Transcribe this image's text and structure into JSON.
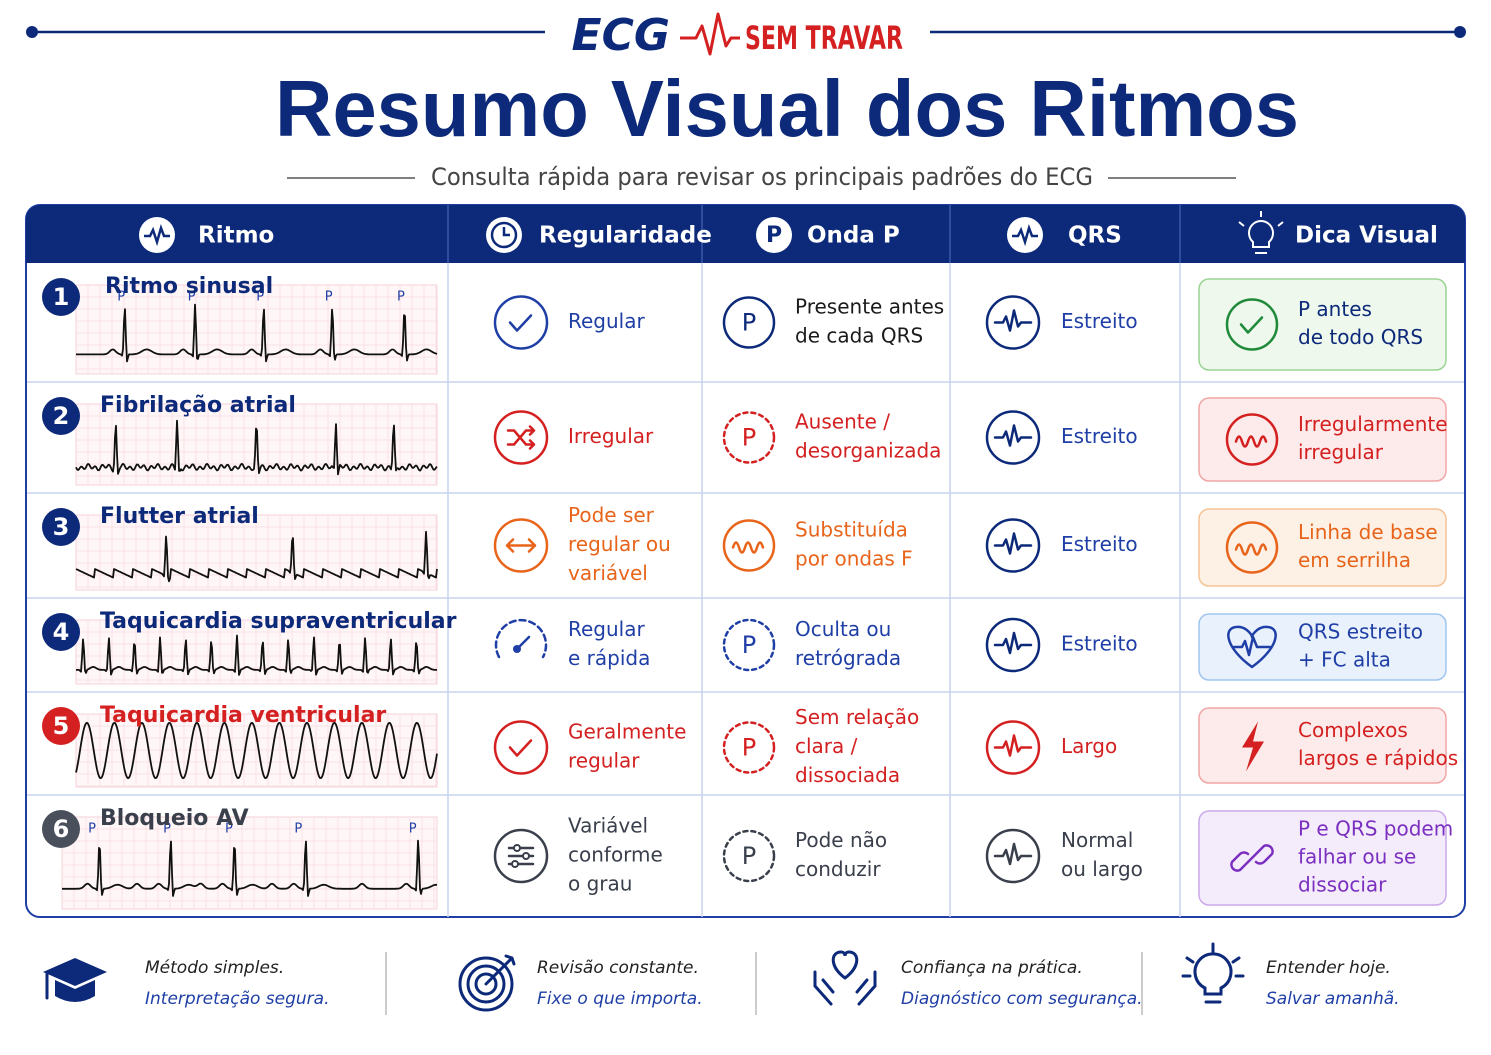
{
  "header": {
    "brand": {
      "left": "ECG",
      "right": "SEM TRAVAR"
    },
    "title": "Resumo Visual dos Ritmos",
    "subtitle": "Consulta rápida para revisar os principais padrões do ECG"
  },
  "table": {
    "columns": [
      "Ritmo",
      "Regularidade",
      "Onda P",
      "QRS",
      "Dica Visual"
    ],
    "p_symbol": "P",
    "rows": [
      {
        "number": 1,
        "name": "Ritmo sinusal",
        "regularity": [
          "Regular"
        ],
        "p_wave": [
          "Presente antes",
          "de cada QRS"
        ],
        "qrs": [
          "Estreito"
        ],
        "tip": [
          "P antes",
          "de todo QRS"
        ]
      },
      {
        "number": 2,
        "name": "Fibrilação atrial",
        "regularity": [
          "Irregular"
        ],
        "p_wave": [
          "Ausente /",
          "desorganizada"
        ],
        "qrs": [
          "Estreito"
        ],
        "tip": [
          "Irregularmente",
          "irregular"
        ]
      },
      {
        "number": 3,
        "name": "Flutter atrial",
        "regularity": [
          "Pode ser",
          "regular ou",
          "variável"
        ],
        "p_wave": [
          "Substituída",
          "por ondas F"
        ],
        "qrs": [
          "Estreito"
        ],
        "tip": [
          "Linha de base",
          "em serrilha"
        ]
      },
      {
        "number": 4,
        "name": "Taquicardia supraventricular",
        "regularity": [
          "Regular",
          "e rápida"
        ],
        "p_wave": [
          "Oculta ou",
          "retrógrada"
        ],
        "qrs": [
          "Estreito"
        ],
        "tip": [
          "QRS estreito",
          "+ FC alta"
        ]
      },
      {
        "number": 5,
        "name": "Taquicardia ventricular",
        "regularity": [
          "Geralmente",
          "regular"
        ],
        "p_wave": [
          "Sem relação",
          "clara /",
          "dissociada"
        ],
        "qrs": [
          "Largo"
        ],
        "tip": [
          "Complexos",
          "largos e rápidos"
        ]
      },
      {
        "number": 6,
        "name": "Bloqueio AV",
        "regularity": [
          "Variável",
          "conforme",
          "o grau"
        ],
        "p_wave": [
          "Pode não",
          "conduzir"
        ],
        "qrs": [
          "Normal",
          "ou largo"
        ],
        "tip": [
          "P e QRS podem",
          "falhar ou se",
          "dissociar"
        ]
      }
    ]
  },
  "footer": [
    {
      "line1": "Método simples.",
      "line2": "Interpretação segura."
    },
    {
      "line1": "Revisão constante.",
      "line2": "Fixe o que importa."
    },
    {
      "line1": "Confiança na prática.",
      "line2": "Diagnóstico com segurança."
    },
    {
      "line1": "Entender hoje.",
      "line2": "Salvar amanhã."
    }
  ]
}
